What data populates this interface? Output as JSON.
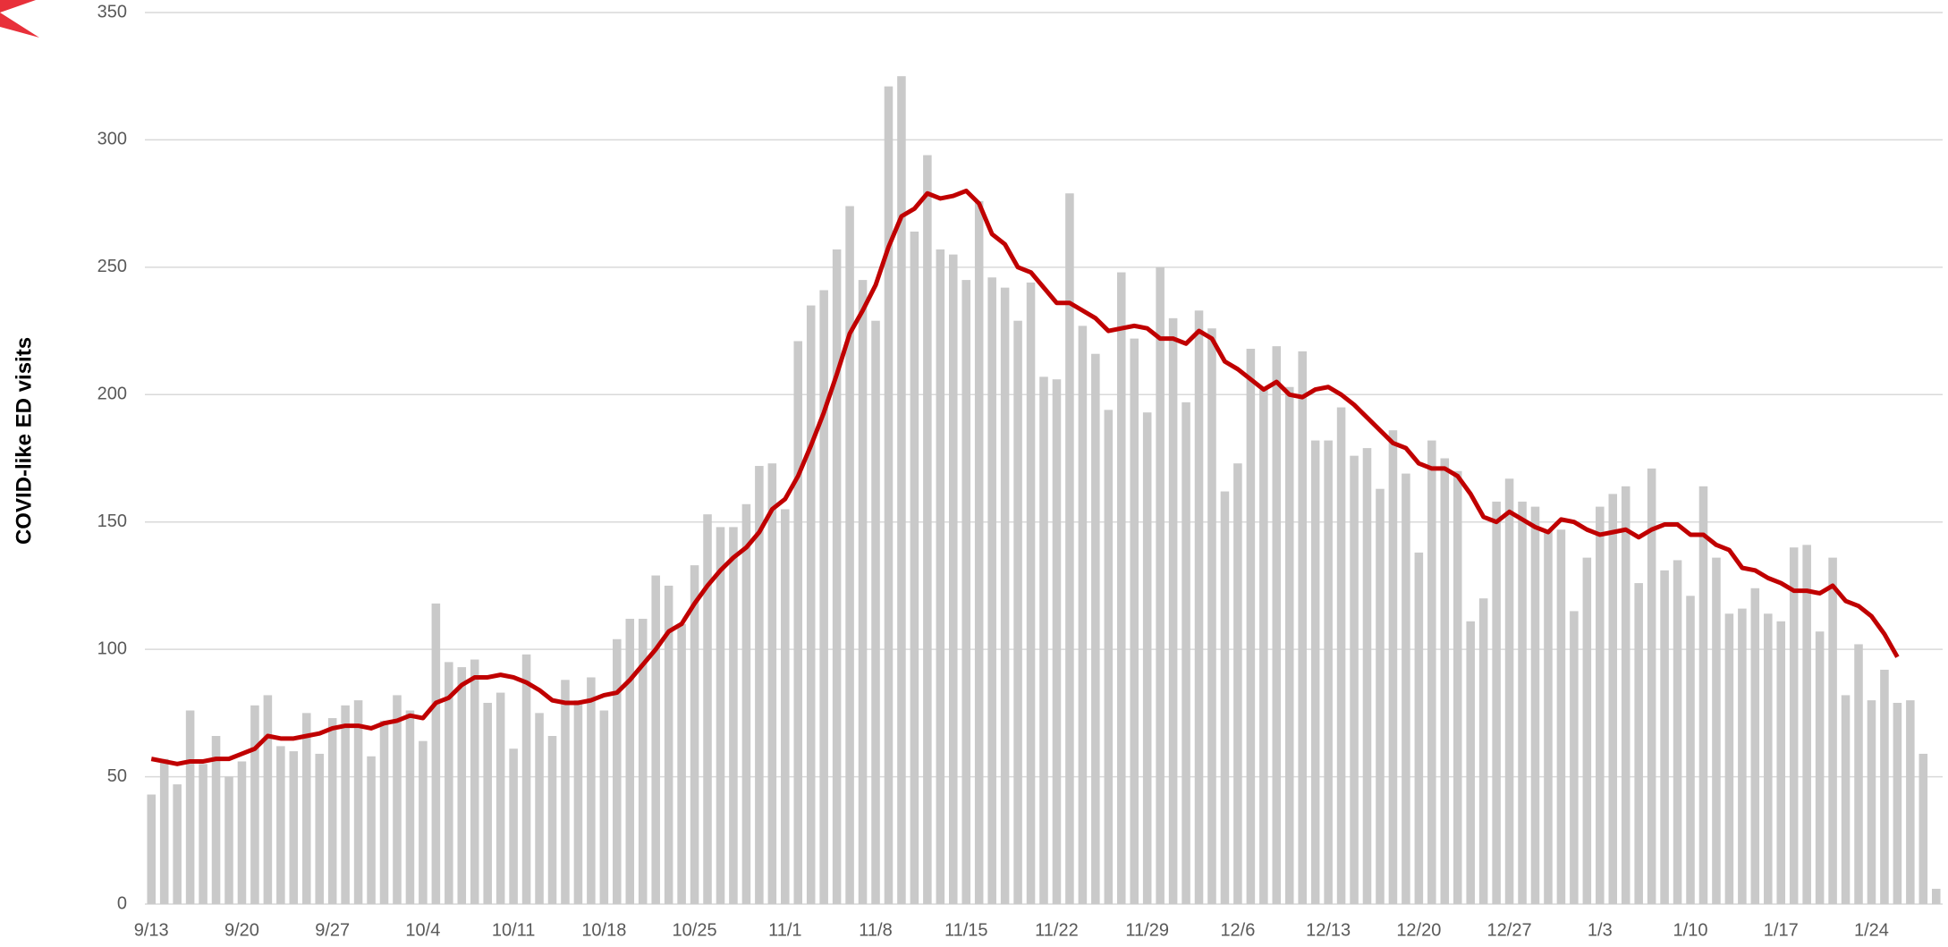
{
  "chart_data": {
    "type": "bar",
    "y_label": "COVID-like ED visits",
    "categories": [
      "9/13",
      null,
      null,
      null,
      null,
      null,
      null,
      "9/20",
      null,
      null,
      null,
      null,
      null,
      null,
      "9/27",
      null,
      null,
      null,
      null,
      null,
      null,
      "10/4",
      null,
      null,
      null,
      null,
      null,
      null,
      "10/11",
      null,
      null,
      null,
      null,
      null,
      null,
      "10/18",
      null,
      null,
      null,
      null,
      null,
      null,
      "10/25",
      null,
      null,
      null,
      null,
      null,
      null,
      "11/1",
      null,
      null,
      null,
      null,
      null,
      null,
      "11/8",
      null,
      null,
      null,
      null,
      null,
      null,
      "11/15",
      null,
      null,
      null,
      null,
      null,
      null,
      "11/22",
      null,
      null,
      null,
      null,
      null,
      null,
      "11/29",
      null,
      null,
      null,
      null,
      null,
      null,
      "12/6",
      null,
      null,
      null,
      null,
      null,
      null,
      "12/13",
      null,
      null,
      null,
      null,
      null,
      null,
      "12/20",
      null,
      null,
      null,
      null,
      null,
      null,
      "12/27",
      null,
      null,
      null,
      null,
      null,
      null,
      "1/3",
      null,
      null,
      null,
      null,
      null,
      null,
      "1/10",
      null,
      null,
      null,
      null,
      null,
      null,
      "1/17",
      null,
      null,
      null,
      null,
      null,
      null,
      "1/24",
      null,
      null,
      null,
      null,
      null
    ],
    "series": [
      {
        "type": "bar",
        "color": "#c9c9c9",
        "values": [
          43,
          57,
          47,
          76,
          55,
          66,
          50,
          56,
          78,
          82,
          62,
          60,
          75,
          59,
          73,
          78,
          80,
          58,
          72,
          82,
          76,
          64,
          118,
          95,
          93,
          96,
          79,
          83,
          61,
          98,
          75,
          66,
          88,
          80,
          89,
          76,
          104,
          112,
          112,
          129,
          125,
          110,
          133,
          153,
          148,
          148,
          157,
          172,
          173,
          155,
          221,
          235,
          241,
          257,
          274,
          245,
          229,
          321,
          325,
          264,
          294,
          257,
          255,
          245,
          276,
          246,
          242,
          229,
          244,
          207,
          206,
          279,
          227,
          216,
          194,
          248,
          222,
          193,
          250,
          230,
          197,
          233,
          226,
          162,
          173,
          218,
          202,
          219,
          203,
          217,
          182,
          182,
          195,
          176,
          179,
          163,
          186,
          169,
          138,
          182,
          175,
          170,
          111,
          120,
          158,
          167,
          158,
          156,
          147,
          147,
          115,
          136,
          156,
          161,
          164,
          126,
          171,
          131,
          135,
          121,
          164,
          136,
          114,
          116,
          124,
          114,
          111,
          140,
          141,
          107,
          136,
          82,
          102,
          80,
          92,
          79,
          80,
          59,
          6
        ]
      },
      {
        "type": "line",
        "color": "#c00000",
        "values": [
          57,
          56,
          55,
          56,
          56,
          57,
          57,
          59,
          61,
          66,
          65,
          65,
          66,
          67,
          69,
          70,
          70,
          69,
          71,
          72,
          74,
          73,
          79,
          81,
          86,
          89,
          89,
          90,
          89,
          87,
          84,
          80,
          79,
          79,
          80,
          82,
          83,
          88,
          94,
          100,
          107,
          110,
          118,
          125,
          131,
          136,
          140,
          146,
          155,
          159,
          168,
          180,
          193,
          208,
          224,
          233,
          243,
          258,
          270,
          273,
          279,
          277,
          278,
          280,
          275,
          263,
          259,
          250,
          248,
          242,
          236,
          236,
          233,
          230,
          225,
          226,
          227,
          226,
          222,
          222,
          220,
          225,
          222,
          213,
          210,
          206,
          202,
          205,
          200,
          199,
          202,
          203,
          200,
          196,
          191,
          186,
          181,
          179,
          173,
          171,
          171,
          168,
          161,
          152,
          150,
          154,
          151,
          148,
          146,
          151,
          150,
          147,
          145,
          146,
          147,
          144,
          147,
          149,
          149,
          145,
          145,
          141,
          139,
          132,
          131,
          128,
          126,
          123,
          123,
          122,
          125,
          119,
          117,
          113,
          106,
          97,
          null,
          null,
          null
        ]
      }
    ],
    "ylim": [
      0,
      350
    ],
    "yticks": [
      0,
      50,
      100,
      150,
      200,
      250,
      300,
      350
    ],
    "grid": true
  }
}
